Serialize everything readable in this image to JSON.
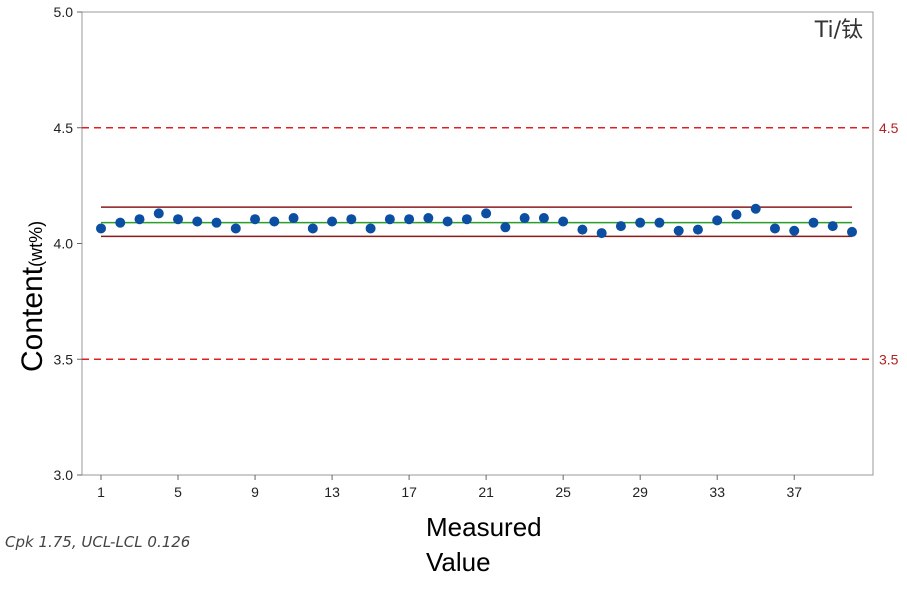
{
  "chart_data": {
    "type": "scatter",
    "ylim": [
      3.0,
      5.0
    ],
    "yticks": [
      "3.0",
      "3.5",
      "4.0",
      "4.5",
      "5.0"
    ],
    "xticks": [
      1,
      5,
      9,
      13,
      17,
      21,
      25,
      29,
      33,
      37
    ],
    "x": [
      1,
      2,
      3,
      4,
      5,
      6,
      7,
      8,
      9,
      10,
      11,
      12,
      13,
      14,
      15,
      16,
      17,
      18,
      19,
      20,
      21,
      22,
      23,
      24,
      25,
      26,
      27,
      28,
      29,
      30,
      31,
      32,
      33,
      34,
      35,
      36,
      37,
      38,
      39,
      40
    ],
    "values": [
      4.065,
      4.09,
      4.105,
      4.13,
      4.105,
      4.095,
      4.09,
      4.065,
      4.105,
      4.095,
      4.11,
      4.065,
      4.095,
      4.105,
      4.065,
      4.105,
      4.105,
      4.11,
      4.095,
      4.105,
      4.13,
      4.07,
      4.11,
      4.11,
      4.095,
      4.06,
      4.045,
      4.075,
      4.09,
      4.09,
      4.055,
      4.06,
      4.1,
      4.125,
      4.15,
      4.065,
      4.055,
      4.09,
      4.075,
      4.05
    ],
    "spec_limits": {
      "upper": 4.5,
      "lower": 3.5,
      "upper_label": "4.5",
      "lower_label": "3.5"
    },
    "control_limits": {
      "ucl": 4.157,
      "lcl": 4.031,
      "center": 4.09
    },
    "element_label": "Ti/钛",
    "ylabel_main": "Content",
    "ylabel_unit": "(wt%)",
    "xlabel_line1": "Measured",
    "xlabel_line2": "Value",
    "stats_text": "Cpk 1.75,  UCL-LCL 0.126",
    "grid": false,
    "colors": {
      "points": "#0b4ea2",
      "spec_line": "#e02020",
      "spec_text": "#b22222",
      "control_line": "#8b1a1a",
      "center_line": "#2a9d2a",
      "frame": "#999999"
    }
  }
}
